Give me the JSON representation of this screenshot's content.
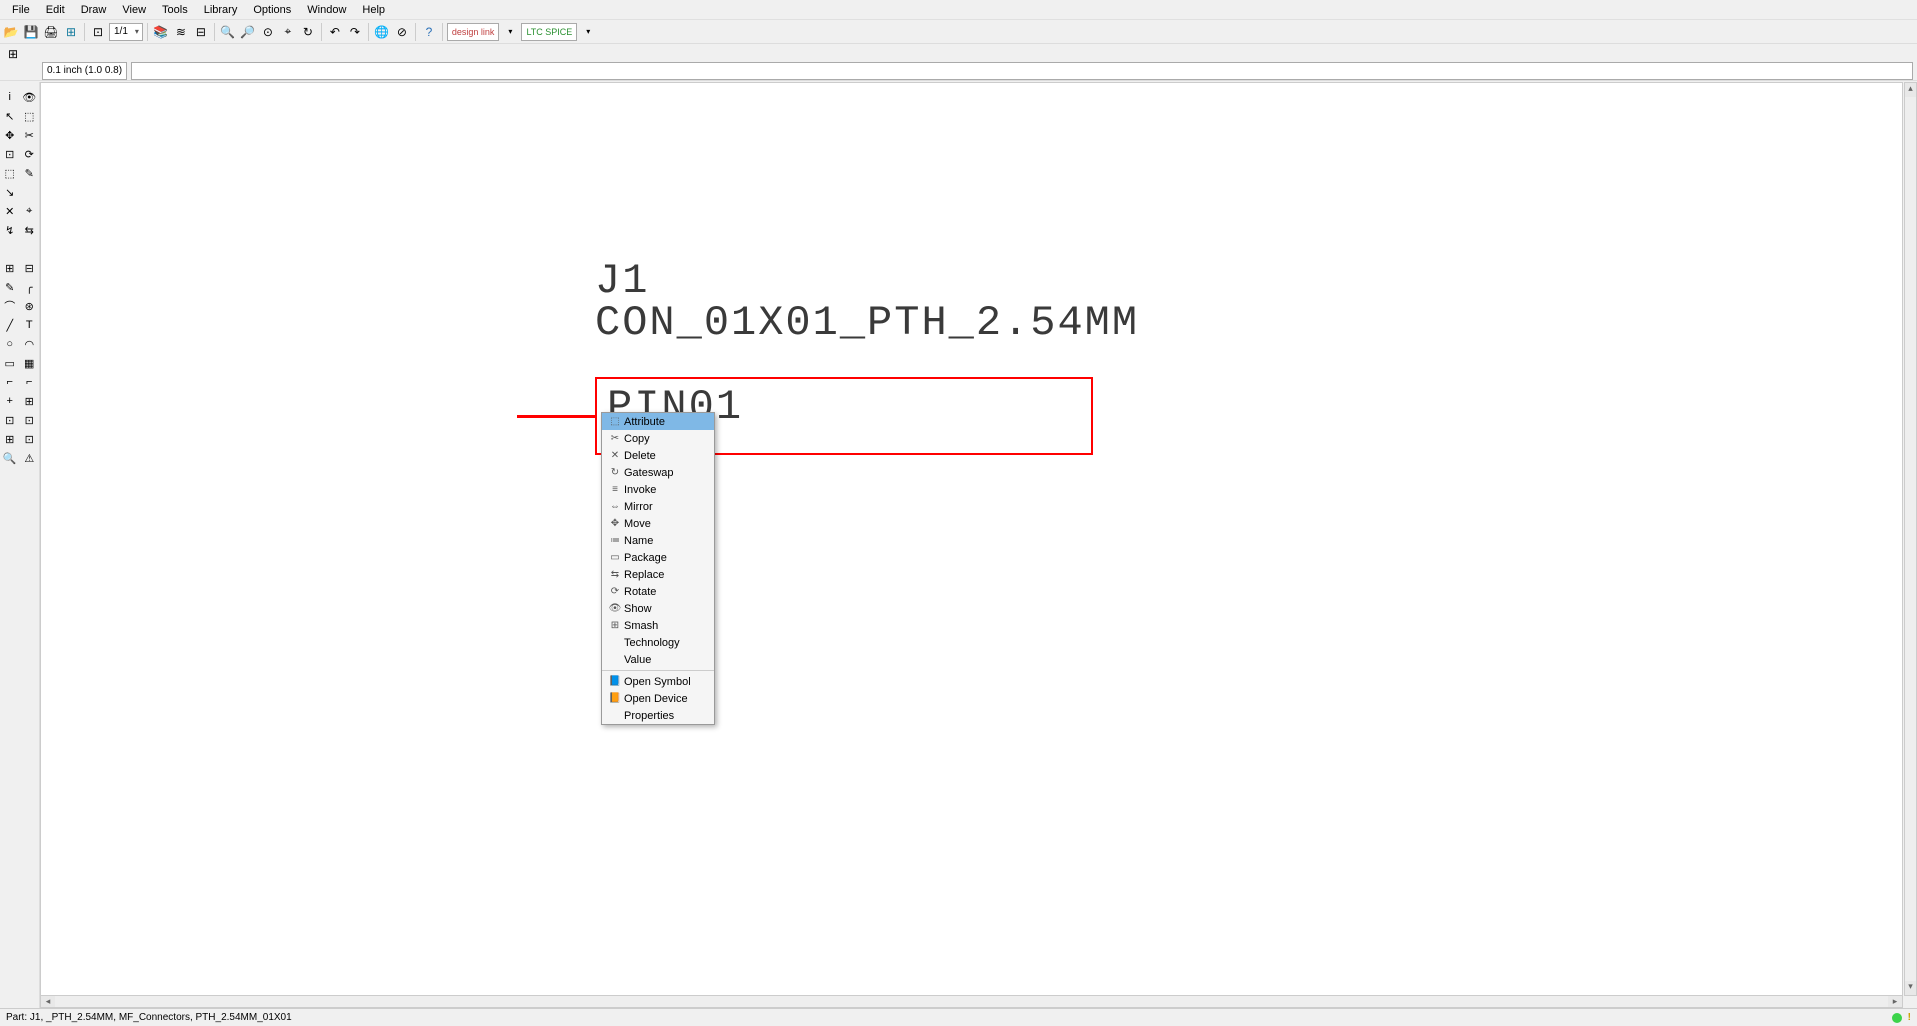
{
  "menubar": [
    "File",
    "Edit",
    "Draw",
    "View",
    "Tools",
    "Library",
    "Options",
    "Window",
    "Help"
  ],
  "toolbar1": {
    "pagecombo": "1/1",
    "badge1": "design link",
    "badge2": "LTC SPICE"
  },
  "coord_display": "0.1 inch (1.0 0.8)",
  "part": {
    "ref": "J1",
    "value": "CON_01X01_PTH_2.54MM",
    "pin_label": "PIN01"
  },
  "context_menu": {
    "highlighted_index": 0,
    "items": [
      {
        "icon": "⬚",
        "label": "Attribute"
      },
      {
        "icon": "✂",
        "label": "Copy"
      },
      {
        "icon": "✕",
        "label": "Delete"
      },
      {
        "icon": "↻",
        "label": "Gateswap"
      },
      {
        "icon": "≡",
        "label": "Invoke"
      },
      {
        "icon": "⇔",
        "label": "Mirror"
      },
      {
        "icon": "✥",
        "label": "Move"
      },
      {
        "icon": "≔",
        "label": "Name"
      },
      {
        "icon": "▭",
        "label": "Package"
      },
      {
        "icon": "⇆",
        "label": "Replace"
      },
      {
        "icon": "⟳",
        "label": "Rotate"
      },
      {
        "icon": "👁",
        "label": "Show"
      },
      {
        "icon": "⊞",
        "label": "Smash"
      },
      {
        "icon": "",
        "label": "Technology"
      },
      {
        "icon": "",
        "label": "Value"
      }
    ],
    "items2": [
      {
        "icon": "📘",
        "label": "Open Symbol"
      },
      {
        "icon": "📙",
        "label": "Open Device"
      },
      {
        "icon": "",
        "label": "Properties"
      }
    ]
  },
  "statusbar": {
    "left": "Part: J1, _PTH_2.54MM, MF_Connectors, PTH_2.54MM_01X01",
    "dot_color": "#3bd34a",
    "bang_color": "#c9a000",
    "bang": "!"
  },
  "left_tool_rows": [
    [
      "i",
      "👁"
    ],
    [
      "↖",
      "⬚"
    ],
    [
      "✥",
      "✂"
    ],
    [
      "⊡",
      "⟳"
    ],
    [
      "⬚",
      "✎"
    ],
    [
      "↘",
      ""
    ],
    [
      "✕",
      "⌖"
    ],
    [
      "↯",
      "⇆"
    ],
    [
      "",
      ""
    ],
    [
      "⊞",
      "⊟"
    ],
    [
      "✎",
      "╭"
    ],
    [
      "⌒",
      "⊛"
    ],
    [
      "╱",
      "T"
    ],
    [
      "○",
      "◠"
    ],
    [
      "▭",
      "▦"
    ],
    [
      "⌐",
      "⌐"
    ],
    [
      "+",
      "⊞"
    ],
    [
      "⊡",
      "⊡"
    ],
    [
      "⊞",
      "⊡"
    ],
    [
      "🔍",
      "⚠"
    ]
  ]
}
